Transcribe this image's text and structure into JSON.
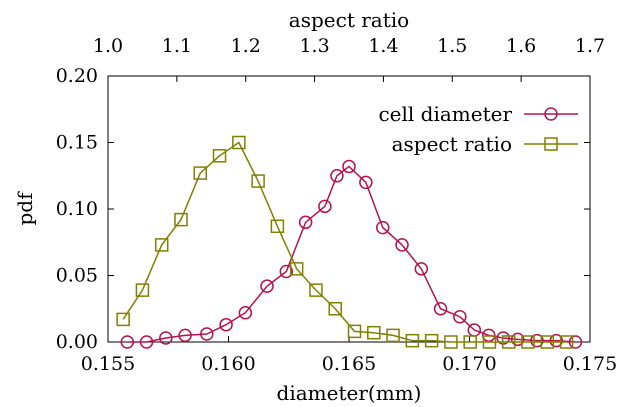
{
  "chart_data": {
    "type": "line",
    "xlabel": "diameter(mm)",
    "x2label": "aspect ratio",
    "ylabel": "pdf",
    "xlim": [
      0.155,
      0.175
    ],
    "x2lim": [
      1.0,
      1.7
    ],
    "ylim": [
      0,
      0.2
    ],
    "xticks": [
      "0.155",
      "0.160",
      "0.165",
      "0.170",
      "0.175"
    ],
    "x2ticks": [
      "1.0",
      "1.1",
      "1.2",
      "1.3",
      "1.4",
      "1.5",
      "1.6",
      "1.7"
    ],
    "yticks": [
      "0.00",
      "0.05",
      "0.10",
      "0.15",
      "0.20"
    ],
    "legend_position": "top-right",
    "grid": false,
    "series": [
      {
        "name": "cell diameter",
        "axis": "bottom",
        "color": "#b5124f",
        "marker": "circle",
        "x": [
          0.1558,
          0.1566,
          0.1574,
          0.1582,
          0.1591,
          0.1599,
          0.1607,
          0.1616,
          0.1624,
          0.1632,
          0.164,
          0.1645,
          0.165,
          0.1657,
          0.1664,
          0.1672,
          0.168,
          0.1688,
          0.1696,
          0.1702,
          0.1708,
          0.1714,
          0.172,
          0.1728,
          0.1736,
          0.1744
        ],
        "y": [
          0.0,
          0.0,
          0.003,
          0.005,
          0.006,
          0.013,
          0.022,
          0.042,
          0.053,
          0.09,
          0.102,
          0.125,
          0.132,
          0.12,
          0.086,
          0.073,
          0.055,
          0.025,
          0.019,
          0.009,
          0.005,
          0.003,
          0.002,
          0.001,
          0.001,
          0.0
        ]
      },
      {
        "name": "aspect ratio",
        "axis": "top",
        "color": "#808000",
        "marker": "square",
        "x": [
          1.022,
          1.05,
          1.078,
          1.106,
          1.134,
          1.162,
          1.19,
          1.218,
          1.246,
          1.274,
          1.302,
          1.33,
          1.358,
          1.386,
          1.414,
          1.442,
          1.47,
          1.498,
          1.526,
          1.554,
          1.582,
          1.61,
          1.638,
          1.666
        ],
        "y": [
          0.017,
          0.039,
          0.073,
          0.092,
          0.127,
          0.14,
          0.15,
          0.121,
          0.087,
          0.055,
          0.039,
          0.025,
          0.008,
          0.007,
          0.005,
          0.001,
          0.001,
          0.0,
          0.0,
          0.0,
          0.0,
          0.0,
          0.0,
          0.0
        ]
      }
    ]
  }
}
